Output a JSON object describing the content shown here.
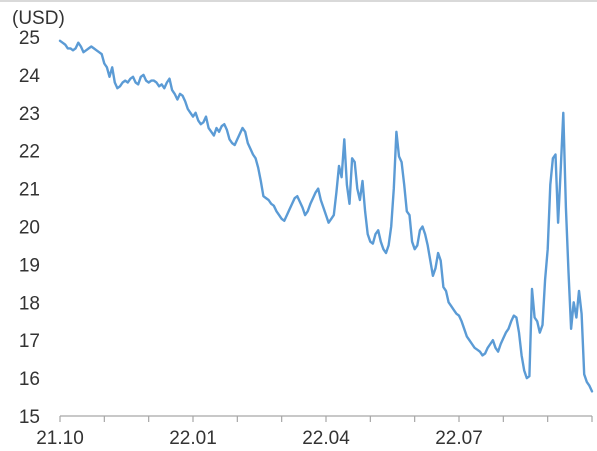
{
  "chart_data": {
    "type": "line",
    "unit_label": "(USD)",
    "ylim": [
      15,
      25
    ],
    "y_ticks": [
      25,
      24,
      23,
      22,
      21,
      20,
      19,
      18,
      17,
      16,
      15
    ],
    "x_tick_labels": [
      "21.10",
      "22.01",
      "22.04",
      "22.07"
    ],
    "x_minor_ticks": 12,
    "line_color": "#5B9BD5",
    "grid": false,
    "series": [
      {
        "x_start": "2021-10",
        "x_end": "2022-12",
        "values": [
          24.9,
          24.85,
          24.8,
          24.7,
          24.7,
          24.65,
          24.7,
          24.85,
          24.75,
          24.6,
          24.65,
          24.7,
          24.75,
          24.7,
          24.65,
          24.6,
          24.55,
          24.3,
          24.2,
          23.95,
          24.2,
          23.8,
          23.65,
          23.7,
          23.8,
          23.85,
          23.8,
          23.9,
          23.95,
          23.8,
          23.75,
          23.95,
          24.0,
          23.85,
          23.8,
          23.85,
          23.85,
          23.8,
          23.7,
          23.75,
          23.65,
          23.8,
          23.9,
          23.6,
          23.5,
          23.35,
          23.5,
          23.45,
          23.3,
          23.1,
          23.0,
          22.9,
          23.0,
          22.8,
          22.7,
          22.75,
          22.9,
          22.6,
          22.5,
          22.4,
          22.6,
          22.5,
          22.65,
          22.7,
          22.55,
          22.3,
          22.2,
          22.15,
          22.3,
          22.45,
          22.6,
          22.5,
          22.2,
          22.05,
          21.9,
          21.8,
          21.55,
          21.2,
          20.8,
          20.75,
          20.7,
          20.6,
          20.55,
          20.4,
          20.3,
          20.2,
          20.15,
          20.3,
          20.45,
          20.6,
          20.75,
          20.8,
          20.65,
          20.5,
          20.3,
          20.4,
          20.6,
          20.75,
          20.9,
          21.0,
          20.7,
          20.5,
          20.3,
          20.1,
          20.2,
          20.3,
          20.9,
          21.6,
          21.3,
          22.3,
          21.1,
          20.6,
          21.8,
          21.7,
          21.0,
          20.7,
          21.2,
          20.4,
          19.8,
          19.6,
          19.55,
          19.8,
          19.9,
          19.6,
          19.4,
          19.3,
          19.5,
          20.0,
          21.0,
          22.5,
          21.85,
          21.7,
          21.1,
          20.4,
          20.3,
          19.6,
          19.4,
          19.5,
          19.9,
          20.0,
          19.8,
          19.5,
          19.1,
          18.7,
          18.9,
          19.3,
          19.1,
          18.4,
          18.3,
          18.0,
          17.9,
          17.8,
          17.7,
          17.65,
          17.5,
          17.3,
          17.1,
          17.0,
          16.9,
          16.8,
          16.75,
          16.7,
          16.6,
          16.65,
          16.8,
          16.9,
          17.0,
          16.8,
          16.7,
          16.9,
          17.05,
          17.2,
          17.3,
          17.5,
          17.65,
          17.6,
          17.2,
          16.6,
          16.2,
          16.0,
          16.05,
          18.35,
          17.6,
          17.5,
          17.2,
          17.4,
          18.6,
          19.4,
          21.1,
          21.8,
          21.9,
          20.1,
          21.5,
          23.0,
          20.5,
          18.8,
          17.3,
          18.0,
          17.6,
          18.3,
          17.7,
          16.1,
          15.9,
          15.8,
          15.65
        ]
      }
    ]
  }
}
